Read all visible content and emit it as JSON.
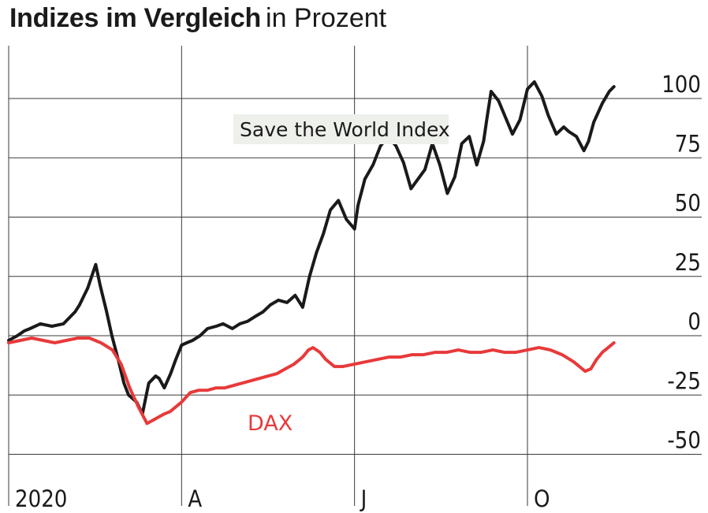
{
  "title": "Indizes im Vergleich",
  "subtitle": "in Prozent",
  "chart_data": {
    "type": "line",
    "ylim": [
      -60,
      110
    ],
    "y_ticks": [
      100,
      75,
      50,
      25,
      0,
      -25,
      -50
    ],
    "y_tick_labels": [
      "100",
      "75",
      "50",
      "25",
      "0",
      "-25",
      "-50"
    ],
    "x_tick_labels": [
      "2020",
      "A",
      "J",
      "O"
    ],
    "x_tick_positions": [
      0,
      3,
      6,
      9
    ],
    "xlim": [
      0,
      12
    ],
    "grid": true,
    "series": [
      {
        "name": "Save the World Index",
        "color": "#1a1a1a",
        "x": [
          0.0,
          0.15,
          0.27,
          0.37,
          0.55,
          0.75,
          0.95,
          1.15,
          1.23,
          1.29,
          1.37,
          1.51,
          1.59,
          1.7,
          1.79,
          1.9,
          2.0,
          2.08,
          2.22,
          2.32,
          2.43,
          2.55,
          2.61,
          2.7,
          2.81,
          2.9,
          3.0,
          3.09,
          3.19,
          3.32,
          3.45,
          3.6,
          3.72,
          3.88,
          4.01,
          4.14,
          4.27,
          4.41,
          4.54,
          4.68,
          4.83,
          4.97,
          5.1,
          5.22,
          5.34,
          5.46,
          5.58,
          5.72,
          5.86,
          6.0,
          6.06,
          6.18,
          6.32,
          6.45,
          6.58,
          6.72,
          6.85,
          6.98,
          7.1,
          7.22,
          7.35,
          7.48,
          7.61,
          7.74,
          7.86,
          7.99,
          8.12,
          8.24,
          8.3,
          8.37,
          8.5,
          8.62,
          8.74,
          8.87,
          9.0,
          9.12,
          9.25,
          9.36,
          9.5,
          9.63,
          9.72,
          9.85,
          9.98,
          10.06,
          10.15,
          10.3,
          10.42,
          10.5
        ],
        "values": [
          -2,
          0,
          2,
          3,
          5,
          4,
          5,
          10,
          13,
          16,
          20,
          30,
          21,
          10,
          0,
          -10,
          -20,
          -25,
          -28,
          -33,
          -20,
          -17,
          -18,
          -22,
          -16,
          -10,
          -4,
          -3,
          -2,
          0,
          3,
          4,
          5,
          3,
          5,
          6,
          8,
          10,
          13,
          15,
          14,
          17,
          12,
          25,
          35,
          43,
          53,
          57,
          49,
          45,
          55,
          66,
          72,
          80,
          84,
          80,
          73,
          62,
          66,
          70,
          81,
          72,
          60,
          67,
          81,
          84,
          72,
          82,
          92,
          103,
          99,
          92,
          85,
          91,
          104,
          107,
          101,
          93,
          85,
          88,
          86,
          84,
          78,
          82,
          90,
          98,
          103,
          105
        ]
      },
      {
        "name": "DAX",
        "color": "#e8393a",
        "x": [
          0.0,
          0.2,
          0.4,
          0.6,
          0.8,
          1.0,
          1.2,
          1.4,
          1.6,
          1.8,
          1.95,
          2.1,
          2.25,
          2.4,
          2.55,
          2.7,
          2.8,
          2.9,
          3.0,
          3.15,
          3.3,
          3.45,
          3.6,
          3.75,
          3.9,
          4.05,
          4.2,
          4.35,
          4.5,
          4.65,
          4.8,
          4.95,
          5.1,
          5.2,
          5.28,
          5.4,
          5.5,
          5.65,
          5.8,
          6.0,
          6.2,
          6.4,
          6.6,
          6.8,
          7.0,
          7.2,
          7.4,
          7.6,
          7.8,
          8.0,
          8.2,
          8.4,
          8.6,
          8.8,
          9.0,
          9.2,
          9.4,
          9.6,
          9.8,
          10.0,
          10.1,
          10.2,
          10.3,
          10.4,
          10.5
        ],
        "values": [
          -3,
          -2,
          -1,
          -2,
          -3,
          -2,
          -1,
          -1,
          -3,
          -6,
          -12,
          -22,
          -30,
          -37,
          -35,
          -33,
          -32,
          -30,
          -28,
          -24,
          -23,
          -23,
          -22,
          -22,
          -21,
          -20,
          -19,
          -18,
          -17,
          -16,
          -14,
          -12,
          -9,
          -6,
          -5,
          -7,
          -10,
          -13,
          -13,
          -12,
          -11,
          -10,
          -9,
          -9,
          -8,
          -8,
          -7,
          -7,
          -6,
          -7,
          -7,
          -6,
          -7,
          -7,
          -6,
          -5,
          -6,
          -8,
          -11,
          -15,
          -14,
          -10,
          -7,
          -5,
          -3
        ]
      }
    ],
    "annotations": [
      "Save the World Index",
      "DAX"
    ]
  }
}
